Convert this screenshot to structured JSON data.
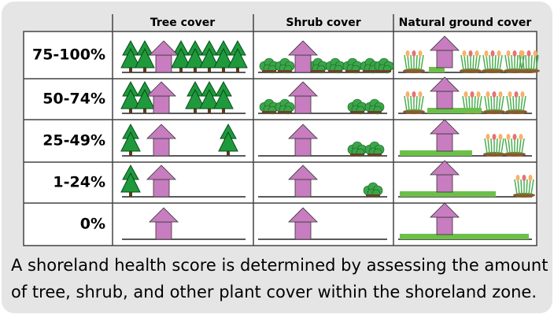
{
  "table": {
    "columns": [
      "Tree cover",
      "Shrub cover",
      "Natural ground cover"
    ],
    "rows": [
      "75-100%",
      "50-74%",
      "25-49%",
      "1-24%",
      "0%"
    ]
  },
  "caption": {
    "lines": [
      "A shoreland health score is determined by assessing the  amount",
      "of tree, shrub, and other plant cover within the shoreland zone."
    ]
  }
}
